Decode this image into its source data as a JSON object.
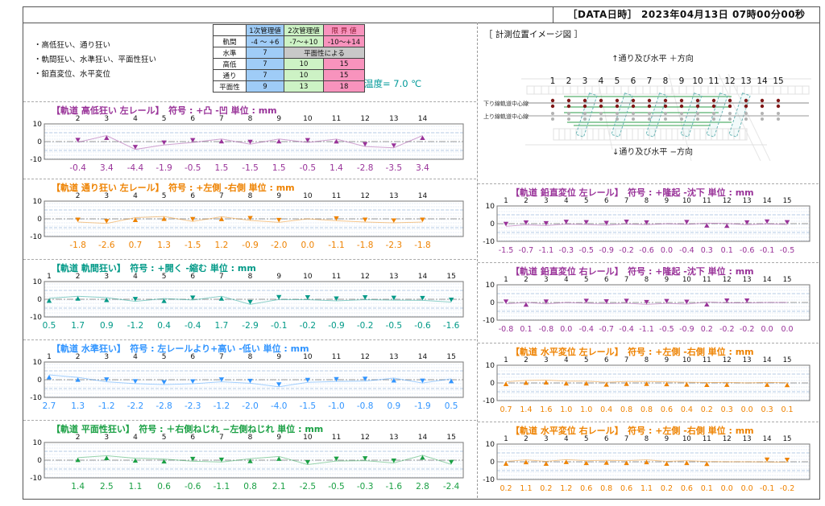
{
  "header": {
    "date_label": "［DATA日時］ 2023年04月13日  07時00分00秒"
  },
  "info": {
    "bullets": [
      "・高低狂い、通り狂い",
      "・軌間狂い、水準狂い、平面性狂い",
      "・鉛直変位、水平変位"
    ],
    "temperature": "温度= 7.0 ℃",
    "table": {
      "headers": [
        "",
        "1次管理値",
        "2次管理値",
        "限 界 値"
      ],
      "rows": [
        {
          "label": "軌間",
          "c1": "-4 ～ +6",
          "c2": "-7～+10",
          "c3": "-10～+14",
          "span": false
        },
        {
          "label": "水準",
          "c1": "7",
          "c2": "平面性による",
          "c3": null,
          "span": true
        },
        {
          "label": "高低",
          "c1": "7",
          "c2": "10",
          "c3": "15",
          "span": false
        },
        {
          "label": "通り",
          "c1": "7",
          "c2": "10",
          "c3": "15",
          "span": false
        },
        {
          "label": "平面性",
          "c1": "9",
          "c2": "13",
          "c3": "18",
          "span": false
        }
      ],
      "colors": {
        "c1": "#9fccf7",
        "c2": "#cdf2c5",
        "c3": "#f893bd",
        "span": "#c8c8c8",
        "limit_header_text": "#8b1a33"
      }
    }
  },
  "diagram": {
    "title": "［ 計測位置イメージ図 ］",
    "top_label": "↑通り及び水平 ＋方向",
    "bottom_label": "↓通り及び水平 −方向",
    "positions": [
      "1",
      "2",
      "3",
      "4",
      "5",
      "6",
      "7",
      "8",
      "9",
      "10",
      "11",
      "12",
      "13",
      "14",
      "15"
    ],
    "down_line_label": "下り線軌道中心線",
    "up_line_label": "上り線軌道中心線",
    "colors": {
      "down_dots": "#7f1717",
      "up_dots": "#b3b3b3",
      "green": "#3aa353",
      "teal": "#6ab5b5"
    }
  },
  "chart_data": [
    {
      "id": "koutei-left",
      "type": "line",
      "column": "left",
      "color": "#993399",
      "title": "【軌道 高低狂い 左レール】",
      "sign": "符号 : +凸 -凹 単位 : mm",
      "ylim": [
        -10,
        10
      ],
      "yticks": [
        "10",
        "0",
        "-10"
      ],
      "x": [
        "2",
        "3",
        "4",
        "5",
        "6",
        "7",
        "8",
        "9",
        "10",
        "11",
        "12",
        "13",
        "14"
      ],
      "values": [
        -0.4,
        3.4,
        -4.4,
        -1.9,
        -0.5,
        1.5,
        -1.5,
        1.5,
        -0.5,
        1.4,
        -2.8,
        -3.5,
        3.4
      ]
    },
    {
      "id": "toori-left",
      "type": "line",
      "column": "left",
      "color": "#ee8200",
      "title": "【軌道 通り狂い 左レール】",
      "sign": "符号 : +左側 -右側 単位 : mm",
      "ylim": [
        -10,
        10
      ],
      "yticks": [
        "10",
        "0",
        "-10"
      ],
      "x": [
        "2",
        "3",
        "4",
        "5",
        "6",
        "7",
        "8",
        "9",
        "10",
        "11",
        "12",
        "13",
        "14"
      ],
      "values": [
        -1.8,
        -2.6,
        0.7,
        1.3,
        -1.5,
        1.2,
        -0.9,
        -2.0,
        0.0,
        -1.1,
        -1.8,
        -2.3,
        -1.8
      ]
    },
    {
      "id": "kikan",
      "type": "line",
      "column": "left",
      "color": "#009987",
      "title": "【軌道 軌間狂い】",
      "sign": "符号 : +開く -縮む 単位 : mm",
      "ylim": [
        -10,
        10
      ],
      "yticks": [
        "10",
        "0",
        "-10"
      ],
      "x": [
        "1",
        "2",
        "3",
        "4",
        "5",
        "6",
        "7",
        "8",
        "9",
        "10",
        "11",
        "12",
        "13",
        "14",
        "15"
      ],
      "values": [
        0.5,
        1.7,
        0.9,
        -1.2,
        0.4,
        -0.4,
        1.7,
        -2.9,
        -0.1,
        -0.2,
        -0.9,
        -0.2,
        -0.5,
        -0.6,
        -1.6
      ]
    },
    {
      "id": "suijun",
      "type": "line",
      "column": "left",
      "color": "#3094ff",
      "title": "【軌道 水準狂い】",
      "sign": "符号 : 左レールより+高い -低い 単位 : mm",
      "ylim": [
        -10,
        10
      ],
      "yticks": [
        "10",
        "0",
        "-10"
      ],
      "x": [
        "1",
        "2",
        "3",
        "4",
        "5",
        "6",
        "7",
        "8",
        "9",
        "10",
        "11",
        "12",
        "13",
        "14",
        "15"
      ],
      "values": [
        2.7,
        1.3,
        -1.2,
        -2.2,
        -2.8,
        -2.3,
        -1.2,
        -2.0,
        -4.0,
        -1.5,
        -1.0,
        -0.8,
        0.9,
        -1.9,
        0.5
      ]
    },
    {
      "id": "heimensei",
      "type": "line",
      "column": "left",
      "color": "#1aa044",
      "title": "【軌道 平面性狂い】",
      "sign": "符号 : ＋右側ねじれ −左側ねじれ 単位 : mm",
      "ylim": [
        -10,
        10
      ],
      "yticks": [
        "10",
        "0",
        "-10"
      ],
      "x": [
        "2",
        "3",
        "4",
        "5",
        "6",
        "7",
        "8",
        "9",
        "10",
        "11",
        "12",
        "13",
        "14",
        "15"
      ],
      "values": [
        1.4,
        2.5,
        1.1,
        0.6,
        -0.6,
        -1.1,
        0.8,
        2.1,
        -2.5,
        -0.5,
        -0.3,
        -1.6,
        2.8,
        -2.4
      ]
    },
    {
      "id": "enchoku-left",
      "type": "line",
      "column": "right",
      "color": "#993399",
      "title": "【軌道 鉛直変位 左レール】",
      "sign": "符号 : +隆起 -沈下 単位 : mm",
      "ylim": [
        -10,
        10
      ],
      "yticks": [
        "10",
        "0",
        "-10"
      ],
      "x": [
        "1",
        "2",
        "3",
        "4",
        "5",
        "6",
        "7",
        "8",
        "9",
        "10",
        "11",
        "12",
        "13",
        "14",
        "15"
      ],
      "values": [
        -1.5,
        -0.7,
        -1.1,
        -0.3,
        -0.5,
        -0.9,
        -0.2,
        -0.6,
        0.0,
        -0.4,
        0.3,
        0.1,
        -0.6,
        -0.1,
        -0.5
      ]
    },
    {
      "id": "enchoku-right",
      "type": "line",
      "column": "right",
      "color": "#993399",
      "title": "【軌道 鉛直変位 右レール】",
      "sign": "符号 : +隆起 -沈下 単位 : mm",
      "ylim": [
        -10,
        10
      ],
      "yticks": [
        "10",
        "0",
        "-10"
      ],
      "x": [
        "1",
        "2",
        "3",
        "4",
        "5",
        "6",
        "7",
        "8",
        "9",
        "10",
        "11",
        "12",
        "13",
        "14",
        "15"
      ],
      "values": [
        -0.8,
        0.1,
        -0.8,
        0.0,
        -0.4,
        -0.7,
        -0.4,
        -1.1,
        -0.5,
        -0.9,
        0.2,
        -0.2,
        -0.2,
        0.0,
        0.0
      ]
    },
    {
      "id": "suihei-left",
      "type": "line",
      "column": "right",
      "color": "#ee8200",
      "title": "【軌道 水平変位 左レール】",
      "sign": "符号 : +左側 -右側 単位 : mm",
      "ylim": [
        -10,
        10
      ],
      "yticks": [
        "10",
        "0",
        "-10"
      ],
      "x": [
        "1",
        "2",
        "3",
        "4",
        "5",
        "6",
        "7",
        "8",
        "9",
        "10",
        "11",
        "12",
        "13",
        "14",
        "15"
      ],
      "values": [
        0.7,
        1.4,
        1.6,
        1.0,
        1.0,
        0.4,
        0.8,
        0.8,
        0.6,
        0.4,
        0.2,
        0.3,
        0.0,
        0.3,
        0.1
      ]
    },
    {
      "id": "suihei-right",
      "type": "line",
      "column": "right",
      "color": "#ee8200",
      "title": "【軌道 水平変位 右レール】",
      "sign": "符号 : +左側 -右側 単位 : mm",
      "ylim": [
        -10,
        10
      ],
      "yticks": [
        "10",
        "0",
        "-10"
      ],
      "x": [
        "1",
        "2",
        "3",
        "4",
        "5",
        "6",
        "7",
        "8",
        "9",
        "10",
        "11",
        "12",
        "13",
        "14",
        "15"
      ],
      "values": [
        0.2,
        1.1,
        0.2,
        1.2,
        0.6,
        0.8,
        0.6,
        1.1,
        0.2,
        0.6,
        0.1,
        0.0,
        0.0,
        -0.1,
        -0.2
      ]
    }
  ]
}
